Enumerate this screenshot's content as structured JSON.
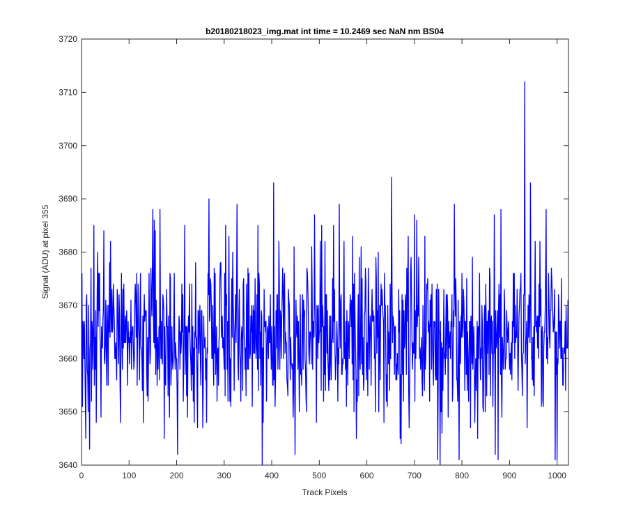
{
  "chart_data": {
    "type": "line",
    "title": "b20180218023_img.mat int time = 10.2469 sec  NaN nm BS04",
    "xlabel": "Track Pixels",
    "ylabel": "Signal (ADU) at pixel 355",
    "xlim": [
      0,
      1024
    ],
    "ylim": [
      3640,
      3720
    ],
    "xticks": [
      "0",
      "100",
      "200",
      "300",
      "400",
      "500",
      "600",
      "700",
      "800",
      "900",
      "1000"
    ],
    "yticks": [
      "3640",
      "3650",
      "3660",
      "3670",
      "3680",
      "3690",
      "3700",
      "3710",
      "3720"
    ],
    "grid": false,
    "legend": "none",
    "series": [
      {
        "color": "#0000ff",
        "x_start": 1,
        "x_step": 1,
        "count": 1024,
        "noise_mean": 3664,
        "noise_sd": 8,
        "peaks": [
          {
            "x": 26,
            "y": 3685
          },
          {
            "x": 47,
            "y": 3684
          },
          {
            "x": 153,
            "y": 3686
          },
          {
            "x": 202,
            "y": 3642
          },
          {
            "x": 268,
            "y": 3690
          },
          {
            "x": 303,
            "y": 3685
          },
          {
            "x": 327,
            "y": 3689
          },
          {
            "x": 380,
            "y": 3640
          },
          {
            "x": 404,
            "y": 3693
          },
          {
            "x": 490,
            "y": 3687
          },
          {
            "x": 542,
            "y": 3689
          },
          {
            "x": 578,
            "y": 3645
          },
          {
            "x": 652,
            "y": 3694
          },
          {
            "x": 700,
            "y": 3687
          },
          {
            "x": 754,
            "y": 3640
          },
          {
            "x": 784,
            "y": 3689
          },
          {
            "x": 868,
            "y": 3687
          },
          {
            "x": 932,
            "y": 3712
          },
          {
            "x": 944,
            "y": 3693
          },
          {
            "x": 977,
            "y": 3688
          },
          {
            "x": 996,
            "y": 3641
          }
        ]
      }
    ]
  },
  "colors": {
    "line": "#0000ff",
    "axis": "#262626",
    "background": "#ffffff"
  }
}
